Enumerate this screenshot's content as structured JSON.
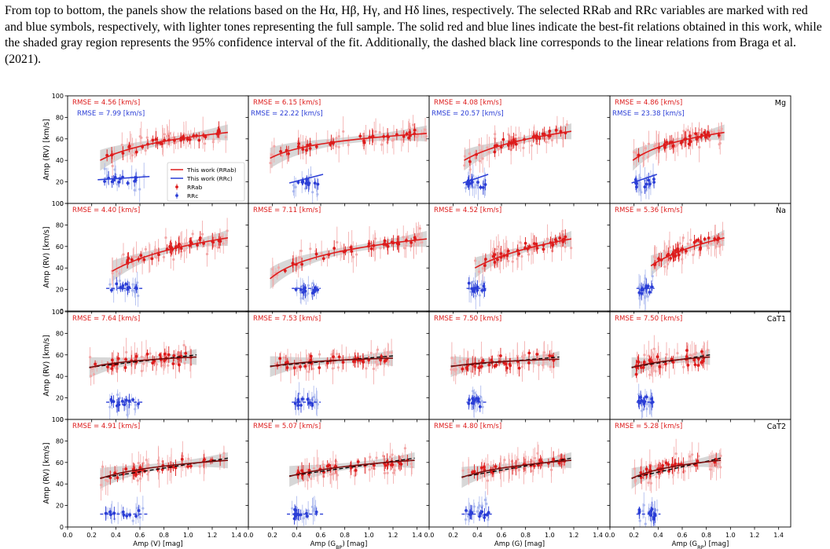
{
  "caption": {
    "p1": "From top to bottom, the panels show the relations based on the Hα, Hβ, Hγ, and Hδ lines, respectively. The selected RRab and RRc variables are marked with red and blue symbols, respectively, with lighter tones representing the full sample. The solid red and blue lines indicate the best-fit relations obtained in this work, while the shaded gray region represents the 95% confidence interval of the fit. Additionally, the dashed black line corresponds to the linear relations from Braga et al. (2021)."
  },
  "colors": {
    "rrab": "#dd1c1c",
    "rrab_light": "#f2a6a6",
    "rrc": "#2b3ed6",
    "rrc_light": "#a9b7ee",
    "braga": "#000000",
    "ci_band": "#c9c9c9"
  },
  "chart_data": {
    "type": "scatter",
    "ylabel": "Amp (RV) [km/s]",
    "xlim": [
      0.0,
      1.5
    ],
    "ylim": [
      0,
      100
    ],
    "x_ticks": [
      "0.0",
      "0.2",
      "0.4",
      "0.6",
      "0.8",
      "1.0",
      "1.2",
      "1.4"
    ],
    "y_ticks": [
      "0",
      "20",
      "40",
      "60",
      "80",
      "100"
    ],
    "columns": [
      {
        "xlabel": "Amp (V) [mag]"
      },
      {
        "xlabel": "Amp (G_BP) [mag]"
      },
      {
        "xlabel": "Amp (G) [mag]"
      },
      {
        "xlabel": "Amp (G_RP) [mag]"
      }
    ],
    "rows": [
      {
        "name": "Mg",
        "rmse_rrab": [
          "RMSE = 4.56 [km/s]",
          "RMSE = 6.15 [km/s]",
          "RMSE = 4.08 [km/s]",
          "RMSE = 4.86 [km/s]"
        ],
        "rmse_rrc": [
          "RMSE = 7.99 [km/s]",
          "RMSE = 22.22 [km/s]",
          "RMSE = 20.57 [km/s]",
          "RMSE = 23.38 [km/s]"
        ]
      },
      {
        "name": "Na",
        "rmse_rrab": [
          "RMSE = 4.40 [km/s]",
          "RMSE = 7.11 [km/s]",
          "RMSE = 4.52 [km/s]",
          "RMSE = 5.36 [km/s]"
        ],
        "rmse_rrc": []
      },
      {
        "name": "CaT1",
        "rmse_rrab": [
          "RMSE = 7.64 [km/s]",
          "RMSE = 7.53 [km/s]",
          "RMSE = 7.50 [km/s]",
          "RMSE = 7.50 [km/s]"
        ],
        "rmse_rrc": []
      },
      {
        "name": "CaT2",
        "rmse_rrab": [
          "RMSE = 4.91 [km/s]",
          "RMSE = 5.07 [km/s]",
          "RMSE = 4.80 [km/s]",
          "RMSE = 5.28 [km/s]"
        ],
        "rmse_rrc": []
      }
    ],
    "legend": {
      "placement": "middle-right of top-left panel",
      "entries": [
        "This work (RRab)",
        "This work (RRc)",
        "RRab",
        "RRc"
      ]
    },
    "fits": [
      [
        {
          "rrab_x": [
            0.27,
            1.33
          ],
          "rrab_y": [
            40,
            66
          ],
          "rrc_x": [
            0.25,
            0.68
          ],
          "rrc_y": [
            22,
            25
          ]
        },
        {
          "rrab_x": [
            0.18,
            1.48
          ],
          "rrab_y": [
            42,
            65
          ],
          "rrc_x": [
            0.34,
            0.62
          ],
          "rrc_y": [
            19,
            27
          ]
        },
        {
          "rrab_x": [
            0.29,
            1.18
          ],
          "rrab_y": [
            40,
            67
          ],
          "rrc_x": [
            0.28,
            0.49
          ],
          "rrc_y": [
            19,
            27
          ]
        },
        {
          "rrab_x": [
            0.19,
            0.95
          ],
          "rrab_y": [
            40,
            66
          ],
          "rrc_x": [
            0.18,
            0.39
          ],
          "rrc_y": [
            19,
            27
          ]
        }
      ],
      [
        {
          "rrab_x": [
            0.37,
            1.33
          ],
          "rrab_y": [
            37,
            68
          ],
          "rrc_x": [
            0.32,
            0.62
          ],
          "rrc_y": [
            21,
            21
          ]
        },
        {
          "rrab_x": [
            0.18,
            1.48
          ],
          "rrab_y": [
            30,
            67
          ],
          "rrc_x": [
            0.36,
            0.6
          ],
          "rrc_y": [
            21,
            21
          ]
        },
        {
          "rrab_x": [
            0.38,
            1.18
          ],
          "rrab_y": [
            40,
            67
          ],
          "rrc_x": [
            0.31,
            0.48
          ],
          "rrc_y": [
            21,
            21
          ]
        },
        {
          "rrab_x": [
            0.34,
            0.95
          ],
          "rrab_y": [
            42,
            68
          ],
          "rrc_x": [
            0.22,
            0.37
          ],
          "rrc_y": [
            21,
            21
          ]
        }
      ],
      [
        {
          "rrab_x": [
            0.18,
            1.07
          ],
          "rrab_y": [
            48,
            58
          ],
          "rrc_x": [
            0.32,
            0.62
          ],
          "rrc_y": [
            16,
            16
          ]
        },
        {
          "rrab_x": [
            0.18,
            1.2
          ],
          "rrab_y": [
            49,
            57
          ],
          "rrc_x": [
            0.36,
            0.6
          ],
          "rrc_y": [
            16,
            16
          ]
        },
        {
          "rrab_x": [
            0.18,
            1.08
          ],
          "rrab_y": [
            49,
            56
          ],
          "rrc_x": [
            0.31,
            0.48
          ],
          "rrc_y": [
            16,
            16
          ]
        },
        {
          "rrab_x": [
            0.18,
            0.83
          ],
          "rrab_y": [
            48,
            58
          ],
          "rrc_x": [
            0.22,
            0.37
          ],
          "rrc_y": [
            16,
            16
          ]
        }
      ],
      [
        {
          "rrab_x": [
            0.27,
            1.33
          ],
          "rrab_y": [
            45,
            62
          ],
          "rrc_x": [
            0.27,
            0.67
          ],
          "rrc_y": [
            12,
            12
          ]
        },
        {
          "rrab_x": [
            0.34,
            1.38
          ],
          "rrab_y": [
            47,
            62
          ],
          "rrc_x": [
            0.32,
            0.62
          ],
          "rrc_y": [
            12,
            12
          ]
        },
        {
          "rrab_x": [
            0.27,
            1.18
          ],
          "rrab_y": [
            46,
            62
          ],
          "rrc_x": [
            0.27,
            0.52
          ],
          "rrc_y": [
            12,
            12
          ]
        },
        {
          "rrab_x": [
            0.18,
            0.92
          ],
          "rrab_y": [
            45,
            62
          ],
          "rrc_x": [
            0.22,
            0.42
          ],
          "rrc_y": [
            12,
            12
          ]
        }
      ]
    ]
  }
}
